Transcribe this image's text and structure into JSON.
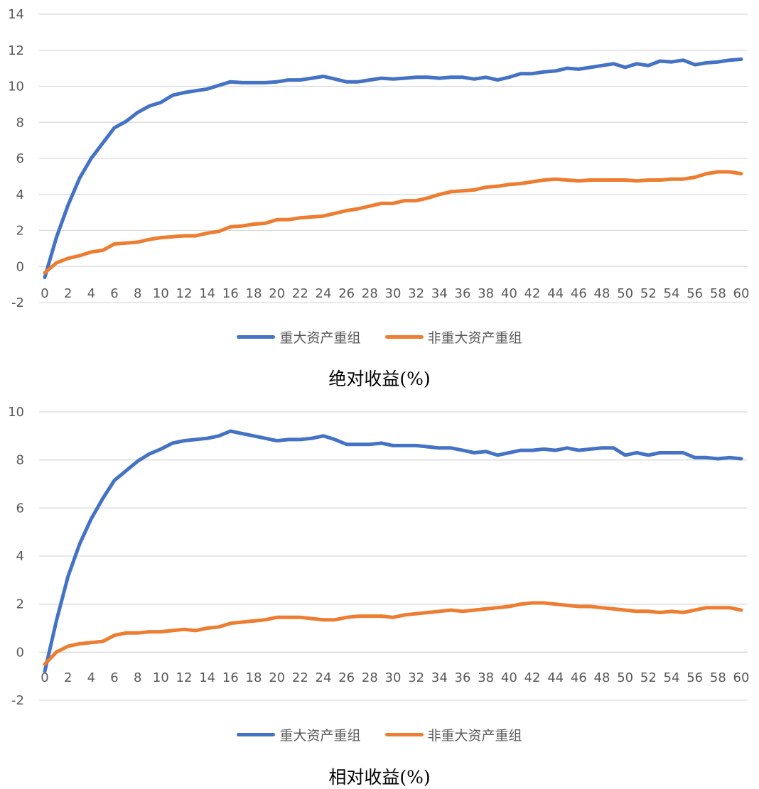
{
  "colors": {
    "major": "#4472C4",
    "non_major": "#ED7D31",
    "grid": "#D9D9D9",
    "tick": "#595959"
  },
  "chart_data": [
    {
      "type": "line",
      "title": "绝对收益(%)",
      "xlabel": "",
      "ylabel": "",
      "ylim": [
        -2,
        14
      ],
      "yticks": [
        "-2",
        "0",
        "2",
        "4",
        "6",
        "8",
        "10",
        "12",
        "14"
      ],
      "xticks": [
        "0",
        "2",
        "4",
        "6",
        "8",
        "10",
        "12",
        "14",
        "16",
        "18",
        "20",
        "22",
        "24",
        "26",
        "28",
        "30",
        "32",
        "34",
        "36",
        "38",
        "40",
        "42",
        "44",
        "46",
        "48",
        "50",
        "52",
        "54",
        "56",
        "58",
        "60"
      ],
      "grid": true,
      "legend": "bottom",
      "x": [
        0,
        1,
        2,
        3,
        4,
        5,
        6,
        7,
        8,
        9,
        10,
        11,
        12,
        13,
        14,
        15,
        16,
        17,
        18,
        19,
        20,
        21,
        22,
        23,
        24,
        25,
        26,
        27,
        28,
        29,
        30,
        31,
        32,
        33,
        34,
        35,
        36,
        37,
        38,
        39,
        40,
        41,
        42,
        43,
        44,
        45,
        46,
        47,
        48,
        49,
        50,
        51,
        52,
        53,
        54,
        55,
        56,
        57,
        58,
        59,
        60
      ],
      "series": [
        {
          "name": "重大资产重组",
          "values": [
            -0.6,
            1.6,
            3.4,
            4.9,
            6.0,
            6.85,
            7.7,
            8.05,
            8.55,
            8.9,
            9.1,
            9.5,
            9.65,
            9.75,
            9.85,
            10.05,
            10.25,
            10.2,
            10.2,
            10.2,
            10.25,
            10.35,
            10.35,
            10.45,
            10.55,
            10.4,
            10.25,
            10.25,
            10.35,
            10.45,
            10.4,
            10.45,
            10.5,
            10.5,
            10.45,
            10.5,
            10.5,
            10.4,
            10.5,
            10.35,
            10.5,
            10.7,
            10.7,
            10.8,
            10.85,
            11.0,
            10.95,
            11.05,
            11.15,
            11.25,
            11.05,
            11.25,
            11.15,
            11.4,
            11.35,
            11.45,
            11.2,
            11.3,
            11.35,
            11.45,
            11.5
          ]
        },
        {
          "name": "非重大资产重组",
          "values": [
            -0.35,
            0.2,
            0.45,
            0.6,
            0.8,
            0.9,
            1.25,
            1.3,
            1.35,
            1.5,
            1.6,
            1.65,
            1.7,
            1.7,
            1.85,
            1.95,
            2.2,
            2.25,
            2.35,
            2.4,
            2.6,
            2.6,
            2.7,
            2.75,
            2.8,
            2.95,
            3.1,
            3.2,
            3.35,
            3.5,
            3.5,
            3.65,
            3.65,
            3.8,
            4.0,
            4.15,
            4.2,
            4.25,
            4.4,
            4.45,
            4.55,
            4.6,
            4.7,
            4.8,
            4.85,
            4.8,
            4.75,
            4.8,
            4.8,
            4.8,
            4.8,
            4.75,
            4.8,
            4.8,
            4.85,
            4.85,
            4.95,
            5.15,
            5.25,
            5.25,
            5.15
          ]
        }
      ]
    },
    {
      "type": "line",
      "title": "相对收益(%)",
      "xlabel": "",
      "ylabel": "",
      "ylim": [
        -2,
        10
      ],
      "yticks": [
        "-2",
        "0",
        "2",
        "4",
        "6",
        "8",
        "10"
      ],
      "xticks": [
        "0",
        "2",
        "4",
        "6",
        "8",
        "10",
        "12",
        "14",
        "16",
        "18",
        "20",
        "22",
        "24",
        "26",
        "28",
        "30",
        "32",
        "34",
        "36",
        "38",
        "40",
        "42",
        "44",
        "46",
        "48",
        "50",
        "52",
        "54",
        "56",
        "58",
        "60"
      ],
      "grid": true,
      "legend": "bottom",
      "x": [
        0,
        1,
        2,
        3,
        4,
        5,
        6,
        7,
        8,
        9,
        10,
        11,
        12,
        13,
        14,
        15,
        16,
        17,
        18,
        19,
        20,
        21,
        22,
        23,
        24,
        25,
        26,
        27,
        28,
        29,
        30,
        31,
        32,
        33,
        34,
        35,
        36,
        37,
        38,
        39,
        40,
        41,
        42,
        43,
        44,
        45,
        46,
        47,
        48,
        49,
        50,
        51,
        52,
        53,
        54,
        55,
        56,
        57,
        58,
        59,
        60
      ],
      "series": [
        {
          "name": "重大资产重组",
          "values": [
            -0.8,
            1.3,
            3.15,
            4.5,
            5.55,
            6.4,
            7.15,
            7.55,
            7.95,
            8.25,
            8.45,
            8.7,
            8.8,
            8.85,
            8.9,
            9.0,
            9.2,
            9.1,
            9.0,
            8.9,
            8.8,
            8.85,
            8.85,
            8.9,
            9.0,
            8.85,
            8.65,
            8.65,
            8.65,
            8.7,
            8.6,
            8.6,
            8.6,
            8.55,
            8.5,
            8.5,
            8.4,
            8.3,
            8.35,
            8.2,
            8.3,
            8.4,
            8.4,
            8.45,
            8.4,
            8.5,
            8.4,
            8.45,
            8.5,
            8.5,
            8.2,
            8.3,
            8.2,
            8.3,
            8.3,
            8.3,
            8.1,
            8.1,
            8.05,
            8.1,
            8.05
          ]
        },
        {
          "name": "非重大资产重组",
          "values": [
            -0.5,
            0.0,
            0.25,
            0.35,
            0.4,
            0.45,
            0.7,
            0.8,
            0.8,
            0.85,
            0.85,
            0.9,
            0.95,
            0.9,
            1.0,
            1.05,
            1.2,
            1.25,
            1.3,
            1.35,
            1.45,
            1.45,
            1.45,
            1.4,
            1.35,
            1.35,
            1.45,
            1.5,
            1.5,
            1.5,
            1.45,
            1.55,
            1.6,
            1.65,
            1.7,
            1.75,
            1.7,
            1.75,
            1.8,
            1.85,
            1.9,
            2.0,
            2.05,
            2.05,
            2.0,
            1.95,
            1.9,
            1.9,
            1.85,
            1.8,
            1.75,
            1.7,
            1.7,
            1.65,
            1.7,
            1.65,
            1.75,
            1.85,
            1.85,
            1.85,
            1.75
          ]
        }
      ]
    }
  ]
}
